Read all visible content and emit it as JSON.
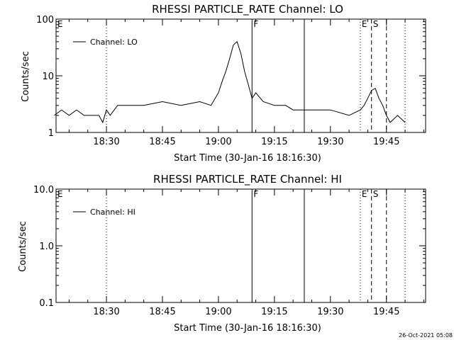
{
  "footer": {
    "timestamp": "26-Oct-2021 05:08"
  },
  "chart_data": [
    {
      "type": "line",
      "title": "RHESSI PARTICLE_RATE Channel: LO",
      "xlabel": "Start Time (30-Jan-16 18:16:30)",
      "ylabel": "Counts/sec",
      "x_scale": "time (minutes after 18:16:30)",
      "xlim": [
        18.2,
        18.4,
        99.0
      ],
      "xlim_minutes": [
        0,
        99
      ],
      "ylim": [
        1,
        100
      ],
      "y_scale": "log",
      "ytick_labels": [
        "1",
        "10",
        "100"
      ],
      "xtick_labels": [
        "18:30",
        "18:45",
        "19:00",
        "19:15",
        "19:30",
        "19:45"
      ],
      "legend": {
        "label": "Channel: LO",
        "position": "top-left"
      },
      "markers": [
        {
          "label": "E",
          "time": "18:16:30",
          "style": "none"
        },
        {
          "label": "",
          "time": "18:30",
          "style": "dotted"
        },
        {
          "label": "F",
          "time": "19:09",
          "style": "solid"
        },
        {
          "label": "",
          "time": "19:23",
          "style": "solid"
        },
        {
          "label": "E",
          "time": "19:38",
          "style": "dotted"
        },
        {
          "label": "S",
          "time": "19:41",
          "style": "dashed"
        },
        {
          "label": "",
          "time": "19:45",
          "style": "dashed"
        },
        {
          "label": "",
          "time": "19:50",
          "style": "dotted"
        }
      ],
      "series": [
        {
          "name": "Channel: LO",
          "x_time": [
            "18:16",
            "18:18",
            "18:20",
            "18:22",
            "18:24",
            "18:26",
            "18:28",
            "18:29",
            "18:30",
            "18:31",
            "18:33",
            "18:36",
            "18:40",
            "18:45",
            "18:50",
            "18:55",
            "18:58",
            "19:00",
            "19:01",
            "19:02",
            "19:03",
            "19:04",
            "19:05",
            "19:06",
            "19:07",
            "19:08",
            "19:09",
            "19:10",
            "19:12",
            "19:15",
            "19:18",
            "19:20",
            "19:25",
            "19:30",
            "19:35",
            "19:38",
            "19:39",
            "19:40",
            "19:41",
            "19:42",
            "19:43",
            "19:44",
            "19:45",
            "19:46",
            "19:48",
            "19:50"
          ],
          "values": [
            2,
            2.5,
            2,
            2.5,
            2,
            2,
            2,
            1.5,
            2.5,
            2,
            3,
            3,
            3,
            3.5,
            3,
            3.5,
            3,
            5,
            8,
            12,
            20,
            35,
            40,
            25,
            12,
            7,
            4,
            5,
            3.5,
            3,
            3,
            2.5,
            2.5,
            2.5,
            2,
            2.5,
            3,
            4,
            5.5,
            6,
            4,
            3,
            2,
            1.5,
            2,
            1.5
          ]
        }
      ]
    },
    {
      "type": "line",
      "title": "RHESSI PARTICLE_RATE Channel: HI",
      "xlabel": "Start Time (30-Jan-16 18:16:30)",
      "ylabel": "Counts/sec",
      "ylim": [
        0.1,
        10
      ],
      "y_scale": "log",
      "ytick_labels": [
        "0.1",
        "1.0",
        "10.0"
      ],
      "xtick_labels": [
        "18:30",
        "18:45",
        "19:00",
        "19:15",
        "19:30",
        "19:45"
      ],
      "legend": {
        "label": "Channel: HI",
        "position": "top-left"
      },
      "markers": [
        {
          "label": "E",
          "time": "18:16:30",
          "style": "none"
        },
        {
          "label": "",
          "time": "18:30",
          "style": "dotted"
        },
        {
          "label": "F",
          "time": "19:09",
          "style": "solid"
        },
        {
          "label": "",
          "time": "19:23",
          "style": "solid"
        },
        {
          "label": "E",
          "time": "19:38",
          "style": "dotted"
        },
        {
          "label": "S",
          "time": "19:41",
          "style": "dashed"
        },
        {
          "label": "",
          "time": "19:45",
          "style": "dashed"
        },
        {
          "label": "",
          "time": "19:50",
          "style": "dotted"
        }
      ],
      "series": [
        {
          "name": "Channel: HI",
          "x_time": [],
          "values": []
        }
      ]
    }
  ]
}
